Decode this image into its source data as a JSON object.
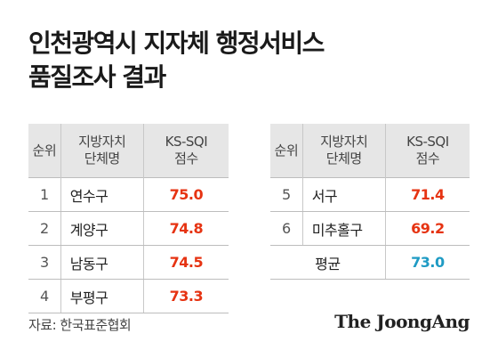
{
  "title": {
    "line1": "인천광역시 지자체 행정서비스",
    "line2": "품질조사 결과"
  },
  "table_left": {
    "headers": {
      "rank": "순위",
      "name": "지방자치\n단체명",
      "score": "KS-SQI\n점수"
    },
    "rows": [
      {
        "rank": "1",
        "name": "연수구",
        "score": "75.0"
      },
      {
        "rank": "2",
        "name": "계양구",
        "score": "74.8"
      },
      {
        "rank": "3",
        "name": "남동구",
        "score": "74.5"
      },
      {
        "rank": "4",
        "name": "부평구",
        "score": "73.3"
      }
    ]
  },
  "table_right": {
    "headers": {
      "rank": "순위",
      "name": "지방자치\n단체명",
      "score": "KS-SQI\n점수"
    },
    "rows": [
      {
        "rank": "5",
        "name": "서구",
        "score": "71.4"
      },
      {
        "rank": "6",
        "name": "미추홀구",
        "score": "69.2"
      }
    ],
    "average": {
      "label": "평균",
      "score": "73.0"
    }
  },
  "colors": {
    "score": "#e63312",
    "average": "#1f9bc4",
    "header_bg": "#e6e6e6"
  },
  "source": "자료: 한국표준협회",
  "logo": "The JoongAng"
}
